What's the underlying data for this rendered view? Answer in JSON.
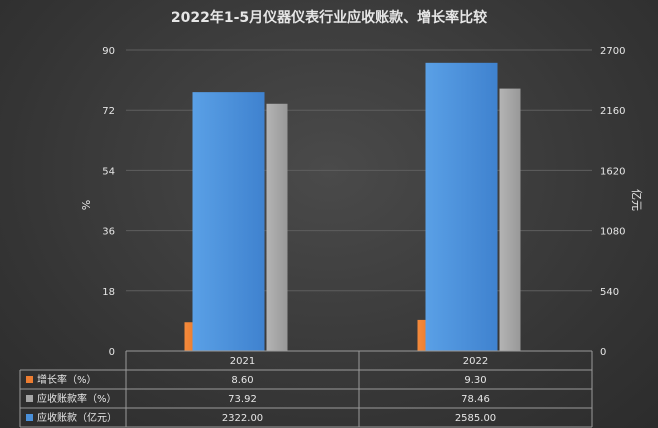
{
  "chart_data": {
    "type": "bar",
    "title": "2022年1-5月仪器仪表行业应收账款、增长率比较",
    "categories": [
      "2021",
      "2022"
    ],
    "left_axis": {
      "label": "%",
      "ticks": [
        "0",
        "18",
        "36",
        "54",
        "72",
        "90"
      ],
      "range": [
        0,
        90
      ]
    },
    "right_axis": {
      "label": "亿元",
      "ticks": [
        "0",
        "540",
        "1080",
        "1620",
        "2160",
        "2700"
      ],
      "range": [
        0,
        2700
      ]
    },
    "series": [
      {
        "name": "增长率（%）",
        "axis": "left",
        "color": "#ed7d31",
        "values": [
          8.6,
          9.3
        ],
        "display": [
          "8.60",
          "9.30"
        ]
      },
      {
        "name": "应收账款率（%）",
        "axis": "left",
        "color": "#a5a5a5",
        "values": [
          73.92,
          78.46
        ],
        "display": [
          "73.92",
          "78.46"
        ]
      },
      {
        "name": "应收账款（亿元）",
        "axis": "right",
        "color": "#4a90d9",
        "values": [
          2322.0,
          2585.0
        ],
        "display": [
          "2322.00",
          "2585.00"
        ]
      }
    ],
    "grid": true
  }
}
